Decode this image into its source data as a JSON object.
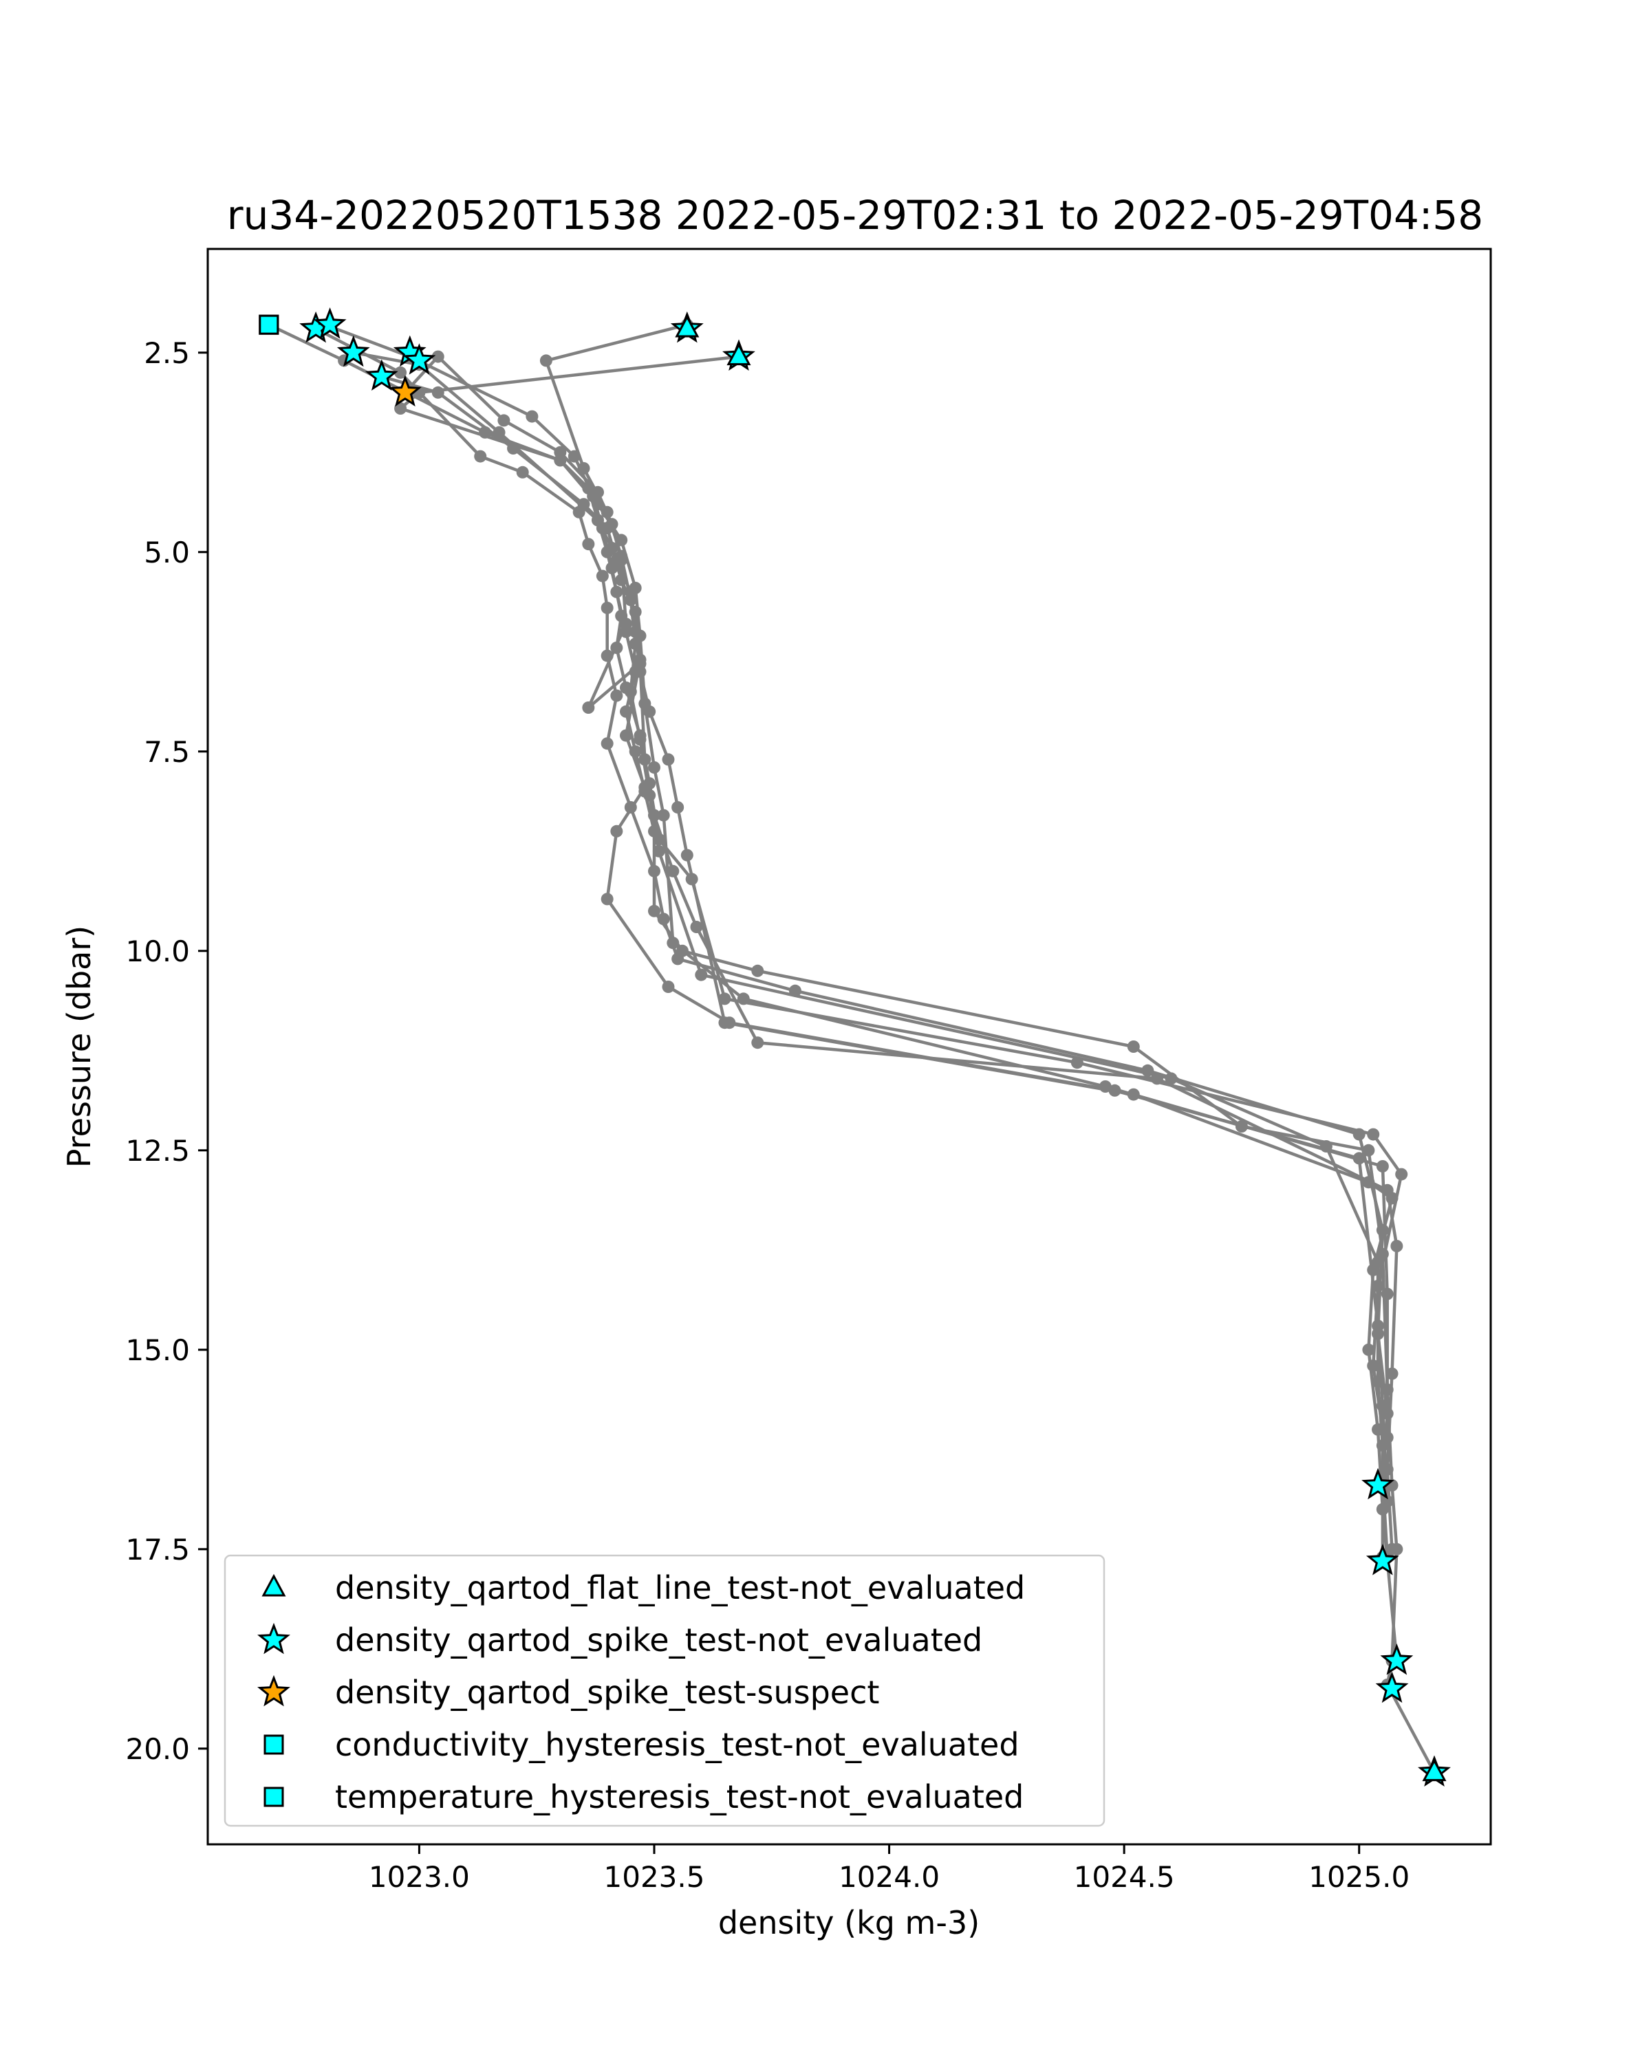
{
  "chart_data": {
    "type": "scatter",
    "title": "ru34-20220520T1538 2022-05-29T02:31 to 2022-05-29T04:58",
    "xlabel": "density (kg m-3)",
    "ylabel": "Pressure (dbar)",
    "xlim": [
      1022.55,
      1025.28
    ],
    "ylim": [
      21.2,
      1.2
    ],
    "y_inverted": true,
    "grid": false,
    "legend_position": "lower-left",
    "xticks": [
      1023.0,
      1023.5,
      1024.0,
      1024.5,
      1025.0
    ],
    "xtick_labels": [
      "1023.0",
      "1023.5",
      "1024.0",
      "1024.5",
      "1025.0"
    ],
    "yticks": [
      2.5,
      5.0,
      7.5,
      10.0,
      12.5,
      15.0,
      17.5,
      20.0
    ],
    "ytick_labels": [
      "2.5",
      "5.0",
      "7.5",
      "10.0",
      "12.5",
      "15.0",
      "17.5",
      "20.0"
    ],
    "line_color": "#808080",
    "profiles": [
      {
        "x": [
          1022.68,
          1022.84,
          1023.14,
          1023.3,
          1023.36,
          1023.38,
          1023.4,
          1023.42,
          1023.44,
          1023.46,
          1023.44,
          1023.46,
          1023.48,
          1023.5,
          1023.5,
          1023.56,
          1023.72,
          1024.52,
          1024.75,
          1025.02,
          1025.05,
          1025.06,
          1025.07,
          1025.08,
          1025.07,
          1025.06,
          1025.16
        ],
        "y": [
          2.15,
          2.6,
          3.5,
          3.85,
          4.2,
          4.6,
          5.0,
          5.5,
          6.0,
          6.5,
          7.0,
          7.5,
          8.0,
          8.5,
          9.5,
          10.0,
          10.25,
          11.2,
          12.2,
          12.5,
          13.8,
          15.5,
          16.7,
          17.5,
          18.9,
          19.2,
          20.3
        ]
      },
      {
        "x": [
          1022.78,
          1022.96,
          1023.13,
          1023.22,
          1023.34,
          1023.36,
          1023.39,
          1023.4,
          1023.4,
          1023.42,
          1023.4,
          1023.45,
          1023.5,
          1023.52,
          1023.55,
          1023.8,
          1024.55,
          1025.0,
          1025.05,
          1025.04,
          1025.06,
          1025.05,
          1025.06
        ],
        "y": [
          2.2,
          2.75,
          3.8,
          4.0,
          4.5,
          4.9,
          5.3,
          5.7,
          6.3,
          6.8,
          7.4,
          8.2,
          9.0,
          9.6,
          10.1,
          10.5,
          11.5,
          12.3,
          13.5,
          14.8,
          15.8,
          16.6,
          17.6
        ]
      },
      {
        "x": [
          1022.8,
          1022.98,
          1023.24,
          1023.33,
          1023.37,
          1023.39,
          1023.41,
          1023.43,
          1023.42,
          1023.44,
          1023.47,
          1023.49,
          1023.51,
          1023.58,
          1023.65,
          1024.4,
          1025.03,
          1025.09,
          1025.04,
          1025.03,
          1025.05,
          1025.05,
          1025.08
        ],
        "y": [
          2.15,
          2.55,
          3.3,
          3.8,
          4.3,
          4.7,
          5.2,
          5.8,
          6.2,
          6.7,
          7.3,
          7.9,
          8.6,
          9.1,
          10.6,
          11.4,
          12.3,
          12.8,
          14.2,
          15.2,
          16.0,
          17.0,
          18.9
        ]
      },
      {
        "x": [
          1022.92,
          1023.04,
          1023.2,
          1023.35,
          1023.4,
          1023.42,
          1023.45,
          1023.46,
          1023.47,
          1023.49,
          1023.53,
          1023.55,
          1023.57,
          1023.65,
          1024.52,
          1025.02,
          1025.07,
          1025.03,
          1025.02,
          1025.04,
          1025.05,
          1025.05
        ],
        "y": [
          2.8,
          3.0,
          3.7,
          4.4,
          4.7,
          5.1,
          5.5,
          6.0,
          6.5,
          7.0,
          7.6,
          8.2,
          8.8,
          10.9,
          11.8,
          12.9,
          13.1,
          14.0,
          15.0,
          16.0,
          17.0,
          17.6
        ]
      },
      {
        "x": [
          1022.97,
          1023.04,
          1023.18,
          1023.3,
          1023.38,
          1023.41,
          1023.43,
          1023.44,
          1023.36,
          1023.47,
          1023.48,
          1023.5,
          1023.54,
          1023.59,
          1023.72,
          1024.57,
          1025.06,
          1025.08,
          1025.07,
          1025.06,
          1025.07
        ],
        "y": [
          3.0,
          2.55,
          3.35,
          3.75,
          4.25,
          4.65,
          5.1,
          5.9,
          6.95,
          6.4,
          7.6,
          8.3,
          9.0,
          9.7,
          11.15,
          11.6,
          13.0,
          13.7,
          15.3,
          16.5,
          17.5
        ]
      },
      {
        "x": [
          1022.86,
          1023.0,
          1023.17,
          1023.38,
          1023.41,
          1023.43,
          1023.46,
          1023.47,
          1023.44,
          1023.48,
          1023.42,
          1023.4,
          1023.53,
          1023.66,
          1024.48,
          1025.0,
          1025.04,
          1025.05,
          1025.06
        ],
        "y": [
          2.5,
          2.65,
          3.5,
          4.6,
          4.95,
          5.35,
          5.75,
          6.35,
          7.3,
          7.95,
          8.5,
          9.35,
          10.45,
          10.9,
          11.75,
          12.6,
          14.7,
          15.7,
          16.9
        ]
      },
      {
        "x": [
          1023.57,
          1023.27,
          1023.35,
          1023.4,
          1023.43,
          1023.45,
          1023.46,
          1023.45,
          1023.47,
          1023.49,
          1023.51,
          1023.6,
          1024.6,
          1024.93,
          1025.04,
          1025.04,
          1025.05
        ],
        "y": [
          2.15,
          2.6,
          3.95,
          4.5,
          5.05,
          5.6,
          6.15,
          6.75,
          7.35,
          8.05,
          8.75,
          10.3,
          11.6,
          12.45,
          13.9,
          15.4,
          16.2
        ]
      },
      {
        "x": [
          1023.68,
          1023.0,
          1022.96,
          1023.3,
          1023.38,
          1023.43,
          1023.46,
          1023.47,
          1023.48,
          1023.5,
          1023.52,
          1023.54,
          1023.69,
          1024.46,
          1025.05,
          1025.06,
          1025.06
        ],
        "y": [
          2.55,
          3.0,
          3.2,
          3.85,
          4.4,
          4.85,
          5.45,
          6.05,
          6.9,
          7.7,
          8.3,
          9.9,
          10.6,
          11.7,
          12.7,
          14.3,
          16.1
        ]
      }
    ],
    "flags": [
      {
        "name": "density_qartod_spike_test-not_evaluated",
        "marker": "star",
        "color": "#00ffff",
        "points": [
          {
            "x": 1022.78,
            "y": 2.2
          },
          {
            "x": 1022.81,
            "y": 2.15
          },
          {
            "x": 1022.86,
            "y": 2.5
          },
          {
            "x": 1022.92,
            "y": 2.8
          },
          {
            "x": 1022.98,
            "y": 2.5
          },
          {
            "x": 1023.0,
            "y": 2.6
          },
          {
            "x": 1023.57,
            "y": 2.2
          },
          {
            "x": 1023.68,
            "y": 2.55
          },
          {
            "x": 1025.04,
            "y": 16.7
          },
          {
            "x": 1025.05,
            "y": 17.65
          },
          {
            "x": 1025.08,
            "y": 18.9
          },
          {
            "x": 1025.07,
            "y": 19.25
          },
          {
            "x": 1025.16,
            "y": 20.3
          }
        ]
      },
      {
        "name": "density_qartod_spike_test-suspect",
        "marker": "star",
        "color": "#ffa500",
        "points": [
          {
            "x": 1022.97,
            "y": 3.0
          }
        ]
      },
      {
        "name": "density_qartod_flat_line_test-not_evaluated",
        "marker": "triangle",
        "color": "#00ffff",
        "points": [
          {
            "x": 1023.57,
            "y": 2.2
          },
          {
            "x": 1023.68,
            "y": 2.55
          },
          {
            "x": 1025.16,
            "y": 20.3
          }
        ]
      },
      {
        "name": "conductivity_hysteresis_test-not_evaluated",
        "marker": "square",
        "color": "#00ffff",
        "points": [
          {
            "x": 1022.68,
            "y": 2.15
          }
        ]
      },
      {
        "name": "temperature_hysteresis_test-not_evaluated",
        "marker": "square",
        "color": "#00ffff",
        "points": [
          {
            "x": 1022.68,
            "y": 2.15
          }
        ]
      }
    ],
    "legend": [
      {
        "label": "density_qartod_flat_line_test-not_evaluated",
        "marker": "triangle",
        "color": "#00ffff"
      },
      {
        "label": "density_qartod_spike_test-not_evaluated",
        "marker": "star",
        "color": "#00ffff"
      },
      {
        "label": "density_qartod_spike_test-suspect",
        "marker": "star",
        "color": "#ffa500"
      },
      {
        "label": "conductivity_hysteresis_test-not_evaluated",
        "marker": "square",
        "color": "#00ffff"
      },
      {
        "label": "temperature_hysteresis_test-not_evaluated",
        "marker": "square",
        "color": "#00ffff"
      }
    ]
  }
}
